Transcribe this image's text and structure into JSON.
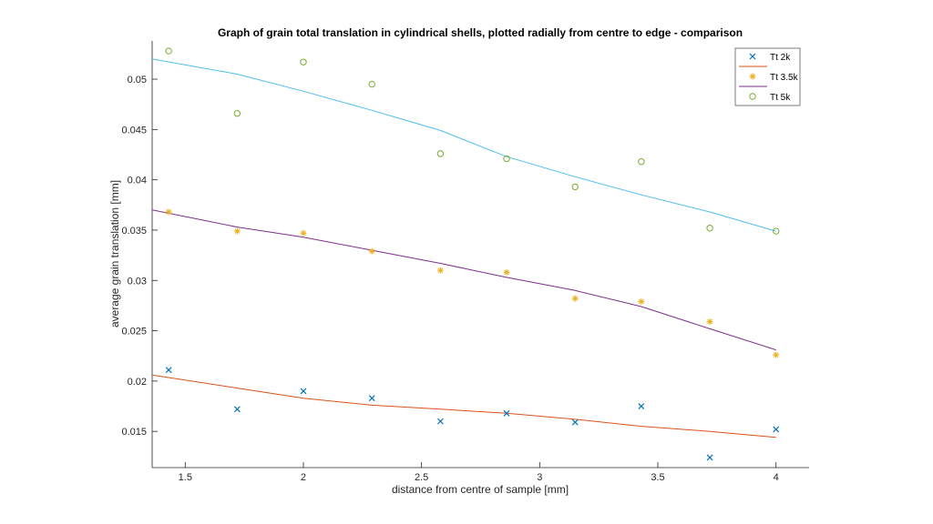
{
  "chart_data": {
    "type": "scatter",
    "title": "Graph of grain total translation in cylindrical shells, plotted radially from centre to edge - comparison",
    "xlabel": "distance from centre of sample [mm]",
    "ylabel": "average grain translation [mm]",
    "xlim": [
      1.36,
      4.14
    ],
    "ylim": [
      0.0114,
      0.0538
    ],
    "xticks": [
      1.5,
      2,
      2.5,
      3,
      3.5,
      4
    ],
    "xtick_labels": [
      "1.5",
      "2",
      "2.5",
      "3",
      "3.5",
      "4"
    ],
    "yticks": [
      0.015,
      0.02,
      0.025,
      0.03,
      0.035,
      0.04,
      0.045,
      0.05
    ],
    "ytick_labels": [
      "0.015",
      "0.02",
      "0.025",
      "0.03",
      "0.035",
      "0.04",
      "0.045",
      "0.05"
    ],
    "grid": false,
    "legend_position": "top-right",
    "series": [
      {
        "name": "Tt 2k",
        "marker": "x",
        "color": "#0072BD",
        "x": [
          1.43,
          1.72,
          2.0,
          2.29,
          2.58,
          2.86,
          3.15,
          3.43,
          3.72,
          4.0
        ],
        "y": [
          0.0211,
          0.0172,
          0.019,
          0.0183,
          0.016,
          0.0168,
          0.0159,
          0.0175,
          0.0124,
          0.0152
        ],
        "fit": {
          "color": "#D95319",
          "x": [
            1.36,
            1.72,
            2.0,
            2.29,
            2.58,
            2.86,
            3.15,
            3.43,
            3.72,
            4.0
          ],
          "y": [
            0.0206,
            0.0193,
            0.0183,
            0.0176,
            0.0172,
            0.0168,
            0.0162,
            0.0155,
            0.015,
            0.0144
          ]
        }
      },
      {
        "name": "Tt 3.5k",
        "marker": "*",
        "color": "#EDB120",
        "x": [
          1.43,
          1.72,
          2.0,
          2.29,
          2.58,
          2.86,
          3.15,
          3.43,
          3.72,
          4.0
        ],
        "y": [
          0.0368,
          0.0349,
          0.0347,
          0.0329,
          0.031,
          0.0308,
          0.0282,
          0.0279,
          0.0259,
          0.0226
        ],
        "fit": {
          "color": "#7E2F8E",
          "x": [
            1.36,
            1.72,
            2.0,
            2.29,
            2.58,
            2.86,
            3.15,
            3.43,
            3.72,
            4.0
          ],
          "y": [
            0.037,
            0.0353,
            0.0343,
            0.033,
            0.0317,
            0.0303,
            0.029,
            0.0274,
            0.0252,
            0.0231
          ]
        }
      },
      {
        "name": "Tt 5k",
        "marker": "o",
        "color": "#77AC30",
        "x": [
          1.43,
          1.72,
          2.0,
          2.29,
          2.58,
          2.86,
          3.15,
          3.43,
          3.72,
          4.0
        ],
        "y": [
          0.0528,
          0.0466,
          0.0517,
          0.0495,
          0.0426,
          0.0421,
          0.0393,
          0.0418,
          0.0352,
          0.0349
        ],
        "fit": {
          "color": "#4DBEEE",
          "x": [
            1.36,
            1.72,
            2.0,
            2.29,
            2.58,
            2.86,
            3.15,
            3.43,
            3.72,
            4.0
          ],
          "y": [
            0.052,
            0.0505,
            0.0488,
            0.0469,
            0.0449,
            0.0423,
            0.0403,
            0.0385,
            0.0368,
            0.0349
          ]
        }
      }
    ]
  }
}
